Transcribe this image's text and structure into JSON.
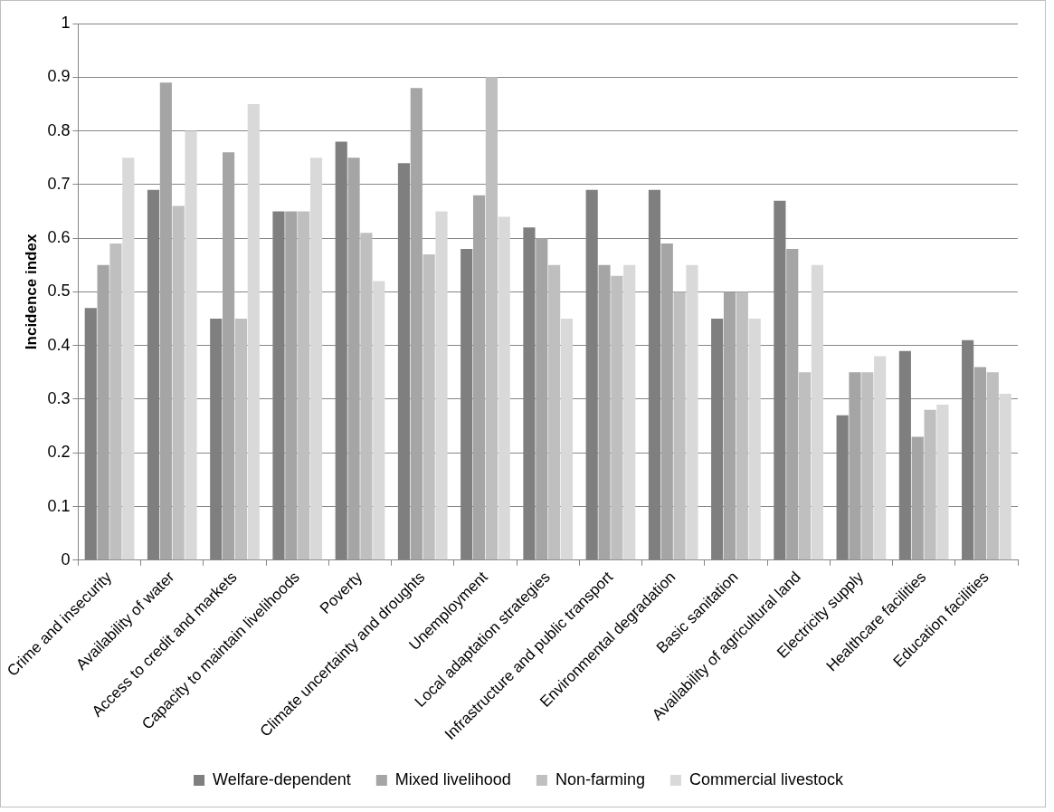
{
  "chart_data": {
    "type": "bar",
    "ylabel": "Incidence index",
    "categories": [
      "Crime and insecurity",
      "Availability of water",
      "Access to credit and markets",
      "Capacity to maintain livelihoods",
      "Poverty",
      "Climate uncertainty and droughts",
      "Unemployment",
      "Local adaptation strategies",
      "Infrastructure and public transport",
      "Environmental degradation",
      "Basic sanitation",
      "Availability of agricultural land",
      "Electricity supply",
      "Healthcare facilities",
      "Education facilities"
    ],
    "series": [
      {
        "name": "Welfare-dependent",
        "color": "#7f7f7f",
        "values": [
          0.47,
          0.69,
          0.45,
          0.65,
          0.78,
          0.74,
          0.58,
          0.62,
          0.69,
          0.69,
          0.45,
          0.67,
          0.27,
          0.39,
          0.41
        ]
      },
      {
        "name": "Mixed livelihood",
        "color": "#a5a5a5",
        "values": [
          0.55,
          0.89,
          0.76,
          0.65,
          0.75,
          0.88,
          0.68,
          0.6,
          0.55,
          0.59,
          0.5,
          0.58,
          0.35,
          0.23,
          0.36
        ]
      },
      {
        "name": "Non-farming",
        "color": "#bfbfbf",
        "values": [
          0.59,
          0.66,
          0.45,
          0.65,
          0.61,
          0.57,
          0.9,
          0.55,
          0.53,
          0.5,
          0.5,
          0.35,
          0.35,
          0.28,
          0.35
        ]
      },
      {
        "name": "Commercial livestock",
        "color": "#d9d9d9",
        "values": [
          0.75,
          0.8,
          0.85,
          0.75,
          0.52,
          0.65,
          0.64,
          0.45,
          0.55,
          0.55,
          0.45,
          0.55,
          0.38,
          0.29,
          0.31
        ]
      }
    ],
    "ylim": [
      0,
      1
    ],
    "yticks": [
      0,
      0.1,
      0.2,
      0.3,
      0.4,
      0.5,
      0.6,
      0.7,
      0.8,
      0.9,
      1
    ],
    "grid": "y",
    "legend": "bottom"
  }
}
